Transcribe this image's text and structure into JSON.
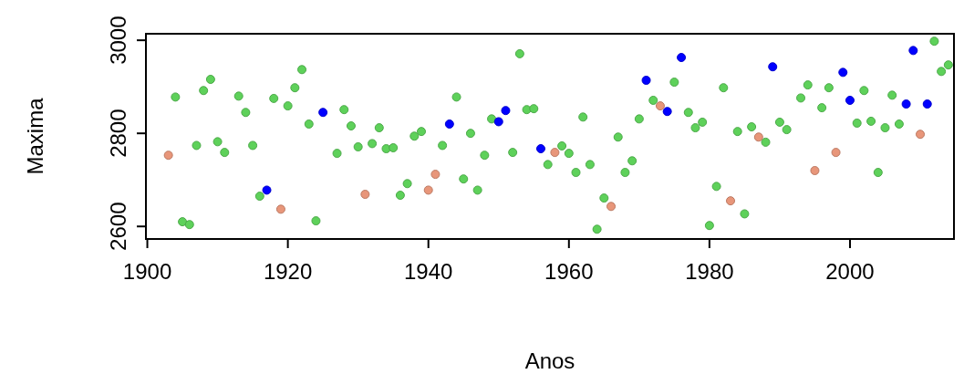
{
  "chart_data": {
    "type": "scatter",
    "xlabel": "Anos",
    "ylabel": "Maxima",
    "xlim": [
      1899.8,
      2014.8
    ],
    "ylim": [
      2573,
      3014
    ],
    "xticks": [
      1900,
      1920,
      1940,
      1960,
      1980,
      2000
    ],
    "yticks": [
      2600,
      2800,
      3000
    ],
    "marker": "circle",
    "grid": false,
    "series": [
      {
        "color": "#5ed15a",
        "x": [
          1904,
          1905,
          1906,
          1907,
          1908,
          1909,
          1910,
          1911,
          1913,
          1914,
          1915,
          1916,
          1918,
          1920,
          1921,
          1922,
          1923,
          1924,
          1927,
          1928,
          1929,
          1930,
          1932,
          1933,
          1934,
          1935,
          1936,
          1937,
          1938,
          1939,
          1942,
          1944,
          1945,
          1946,
          1947,
          1948,
          1949,
          1952,
          1953,
          1954,
          1955,
          1957,
          1959,
          1960,
          1961,
          1962,
          1963,
          1964,
          1965,
          1967,
          1968,
          1969,
          1970,
          1972,
          1975,
          1977,
          1978,
          1979,
          1980,
          1981,
          1982,
          1984,
          1985,
          1986,
          1988,
          1990,
          1991,
          1993,
          1994,
          1996,
          1997,
          2001,
          2002,
          2003,
          2004,
          2005,
          2006,
          2007,
          2012,
          2013,
          2014
        ],
        "values": [
          2878,
          2610,
          2604,
          2774,
          2892,
          2916,
          2782,
          2759,
          2880,
          2845,
          2774,
          2665,
          2875,
          2859,
          2898,
          2937,
          2820,
          2612,
          2757,
          2851,
          2816,
          2771,
          2778,
          2812,
          2767,
          2769,
          2667,
          2692,
          2794,
          2804,
          2774,
          2878,
          2702,
          2800,
          2678,
          2753,
          2831,
          2759,
          2971,
          2851,
          2853,
          2733,
          2773,
          2757,
          2716,
          2835,
          2733,
          2594,
          2661,
          2792,
          2716,
          2741,
          2831,
          2871,
          2910,
          2845,
          2812,
          2824,
          2602,
          2686,
          2898,
          2804,
          2627,
          2814,
          2781,
          2824,
          2808,
          2876,
          2904,
          2855,
          2898,
          2822,
          2892,
          2826,
          2716,
          2812,
          2882,
          2820,
          2998,
          2933,
          2947
        ]
      },
      {
        "color": "#0000ff",
        "x": [
          1917,
          1925,
          1943,
          1950,
          1951,
          1956,
          1971,
          1974,
          1976,
          1989,
          1999,
          2000,
          2008,
          2009,
          2011
        ],
        "values": [
          2678,
          2845,
          2820,
          2825,
          2849,
          2767,
          2914,
          2847,
          2963,
          2943,
          2931,
          2871,
          2863,
          2978,
          2863
        ]
      },
      {
        "color": "#e8967a",
        "x": [
          1903,
          1919,
          1931,
          1940,
          1941,
          1958,
          1966,
          1973,
          1983,
          1987,
          1995,
          1998,
          2010
        ],
        "values": [
          2753,
          2637,
          2669,
          2678,
          2712,
          2759,
          2643,
          2859,
          2655,
          2792,
          2720,
          2759,
          2798
        ]
      }
    ]
  }
}
